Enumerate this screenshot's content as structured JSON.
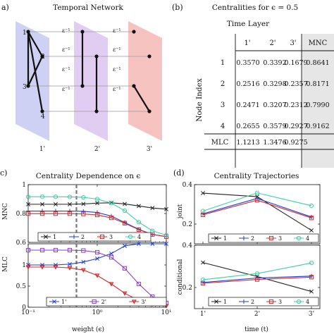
{
  "panel_labels": {
    "a": "a)",
    "b": "(b)",
    "c": "c)",
    "d": "(d)"
  },
  "network": {
    "title": "Temporal Network",
    "layer_labels": [
      "1'",
      "2'",
      "3'"
    ],
    "layer_colors": [
      "#c5c9f2",
      "#dcc4f0",
      "#f6b9b5"
    ],
    "node_labels": [
      "1",
      "2",
      "3",
      "4"
    ],
    "coupling_label": "ε⁻¹"
  },
  "centrality_table": {
    "title": "Centralities for  ϵ = 0.5",
    "col_group_label": "Time Layer",
    "row_group_label": "Node Index",
    "columns": [
      "1'",
      "2'",
      "3'",
      "MNC"
    ],
    "rows": [
      {
        "label": "1",
        "values": [
          "0.3570",
          "0.3392",
          "0.1679",
          "0.8641"
        ]
      },
      {
        "label": "2",
        "values": [
          "0.2516",
          "0.3298",
          "0.2357",
          "0.8171"
        ]
      },
      {
        "label": "3",
        "values": [
          "0.2471",
          "0.3207",
          "0.2312",
          "0.7990"
        ]
      },
      {
        "label": "4",
        "values": [
          "0.2655",
          "0.3579",
          "0.2927",
          "0.9162"
        ]
      }
    ],
    "mlc_row": {
      "label": "MLC",
      "values": [
        "1.1213",
        "1.3476",
        "0.9275"
      ]
    }
  },
  "chart_data": [
    {
      "type": "line",
      "title": "Centrality Dependence on ϵ",
      "xlabel": "weight (ϵ)",
      "ylabel": "MNC",
      "xscale": "log",
      "xlim": [
        0.1,
        10
      ],
      "ylim": [
        0.6,
        1.0
      ],
      "yticks": [
        "0.6",
        "0.8",
        "1"
      ],
      "xticks": [
        "10⁻¹",
        "10⁰",
        "10¹"
      ],
      "vline": 0.5,
      "legend_position": "bottom",
      "series": [
        {
          "name": "1",
          "color": "#222222",
          "marker": "x",
          "x": [
            0.1,
            0.16,
            0.25,
            0.4,
            0.63,
            1.0,
            1.6,
            2.5,
            4.0,
            6.3,
            10
          ],
          "values": [
            0.864,
            0.864,
            0.864,
            0.864,
            0.866,
            0.872,
            0.874,
            0.866,
            0.852,
            0.838,
            0.83
          ]
        },
        {
          "name": "2",
          "color": "#1f3fd6",
          "marker": "+",
          "x": [
            0.1,
            0.16,
            0.25,
            0.4,
            0.63,
            1.0,
            1.6,
            2.5,
            4.0,
            6.3,
            10
          ],
          "values": [
            0.817,
            0.817,
            0.817,
            0.817,
            0.815,
            0.807,
            0.782,
            0.738,
            0.69,
            0.655,
            0.64
          ]
        },
        {
          "name": "3",
          "color": "#d42a2a",
          "marker": "square",
          "x": [
            0.1,
            0.16,
            0.25,
            0.4,
            0.63,
            1.0,
            1.6,
            2.5,
            4.0,
            6.3,
            10
          ],
          "values": [
            0.799,
            0.799,
            0.799,
            0.799,
            0.797,
            0.79,
            0.77,
            0.733,
            0.688,
            0.655,
            0.64
          ]
        },
        {
          "name": "4",
          "color": "#3ccfa8",
          "marker": "circle",
          "x": [
            0.1,
            0.16,
            0.25,
            0.4,
            0.63,
            1.0,
            1.6,
            2.5,
            4.0,
            6.3,
            10
          ],
          "values": [
            0.916,
            0.916,
            0.916,
            0.915,
            0.912,
            0.9,
            0.872,
            0.82,
            0.74,
            0.68,
            0.65
          ]
        }
      ]
    },
    {
      "type": "line",
      "title": "",
      "xlabel": "weight (ϵ)",
      "ylabel": "MLC",
      "xscale": "log",
      "xlim": [
        0.1,
        10
      ],
      "ylim": [
        0.0,
        1.5
      ],
      "yticks": [
        "0",
        "0.5",
        "1"
      ],
      "xticks": [
        "10⁻¹",
        "10⁰",
        "10¹"
      ],
      "vline": 0.5,
      "legend_position": "bottom",
      "series": [
        {
          "name": "1'",
          "color": "#1f3fd6",
          "marker": "x",
          "x": [
            0.1,
            0.16,
            0.25,
            0.4,
            0.63,
            1.0,
            1.6,
            2.5,
            4.0,
            6.3,
            10
          ],
          "values": [
            1.0,
            1.0,
            1.0,
            1.02,
            1.07,
            1.15,
            1.27,
            1.45,
            1.57,
            1.62,
            1.64
          ]
        },
        {
          "name": "2'",
          "color": "#8a3fd0",
          "marker": "square",
          "x": [
            0.1,
            0.16,
            0.25,
            0.4,
            0.63,
            1.0,
            1.6,
            2.5,
            4.0,
            6.3,
            10
          ],
          "values": [
            1.35,
            1.35,
            1.35,
            1.35,
            1.34,
            1.3,
            1.18,
            0.92,
            0.55,
            0.25,
            0.1
          ]
        },
        {
          "name": "3'",
          "color": "#d42a2a",
          "marker": "triangle-down",
          "x": [
            0.1,
            0.16,
            0.25,
            0.4,
            0.63,
            1.0,
            1.6,
            2.5,
            4.0,
            6.3,
            10
          ],
          "values": [
            0.95,
            0.95,
            0.95,
            0.93,
            0.88,
            0.75,
            0.55,
            0.33,
            0.16,
            0.07,
            0.03
          ]
        }
      ]
    },
    {
      "type": "line",
      "title": "Centrality Trajectories",
      "xlabel": "time (t)",
      "ylabel": "joint",
      "categories": [
        "1'",
        "2'",
        "3'"
      ],
      "ylim": [
        0.1,
        0.4
      ],
      "yticks": [
        "0.2",
        "0.4"
      ],
      "legend_position": "bottom",
      "series": [
        {
          "name": "1",
          "color": "#222222",
          "marker": "x",
          "values": [
            0.357,
            0.339,
            0.168
          ]
        },
        {
          "name": "2",
          "color": "#1f3fd6",
          "marker": "+",
          "values": [
            0.252,
            0.33,
            0.236
          ]
        },
        {
          "name": "3",
          "color": "#d42a2a",
          "marker": "square",
          "values": [
            0.247,
            0.321,
            0.231
          ]
        },
        {
          "name": "4",
          "color": "#3ccfa8",
          "marker": "circle",
          "values": [
            0.266,
            0.358,
            0.293
          ]
        }
      ]
    },
    {
      "type": "line",
      "title": "",
      "xlabel": "time (t)",
      "ylabel": "conditional",
      "categories": [
        "1'",
        "2'",
        "3'"
      ],
      "ylim": [
        0.1,
        0.4
      ],
      "yticks": [
        "0.2",
        "0.4"
      ],
      "legend_position": "bottom",
      "series": [
        {
          "name": "1",
          "color": "#222222",
          "marker": "x",
          "values": [
            0.318,
            0.252,
            0.181
          ]
        },
        {
          "name": "2",
          "color": "#1f3fd6",
          "marker": "+",
          "values": [
            0.224,
            0.245,
            0.254
          ]
        },
        {
          "name": "3",
          "color": "#d42a2a",
          "marker": "square",
          "values": [
            0.22,
            0.238,
            0.249
          ]
        },
        {
          "name": "4",
          "color": "#3ccfa8",
          "marker": "circle",
          "values": [
            0.237,
            0.266,
            0.316
          ]
        }
      ]
    }
  ]
}
